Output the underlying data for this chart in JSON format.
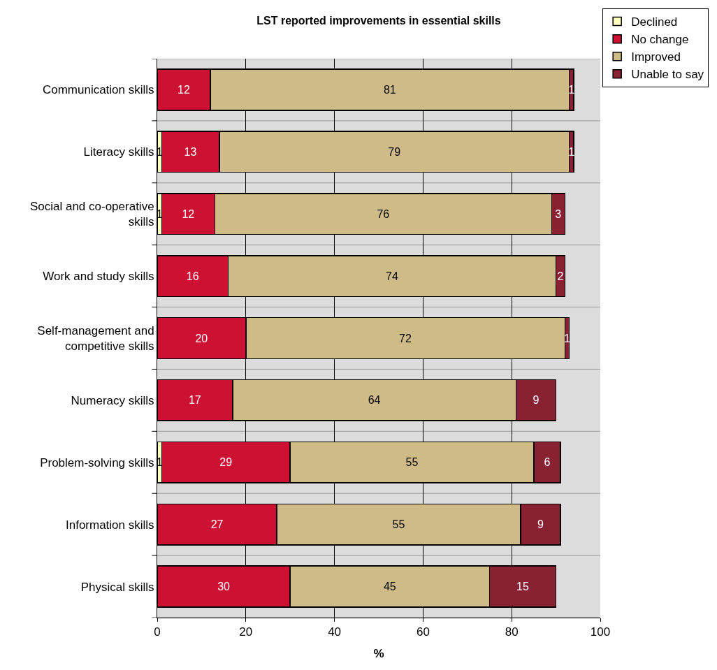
{
  "chart_data": {
    "type": "bar",
    "orientation": "horizontal",
    "stacked": true,
    "title": "LST reported improvements in essential skills",
    "xlabel": "%",
    "categories": [
      "Communication skills",
      "Literacy skills",
      "Social and co-operative skills",
      "Work and study skills",
      "Self-management and competitive skills",
      "Numeracy skills",
      "Problem-solving skills",
      "Information skills",
      "Physical skills"
    ],
    "series": [
      {
        "name": "Declined",
        "color": "#ffffc0",
        "values": [
          null,
          1,
          1,
          null,
          null,
          null,
          1,
          null,
          null
        ]
      },
      {
        "name": "No change",
        "color": "#cc1133",
        "values": [
          12,
          13,
          12,
          16,
          20,
          17,
          29,
          27,
          30
        ]
      },
      {
        "name": "Improved",
        "color": "#cfbb88",
        "values": [
          81,
          79,
          76,
          74,
          72,
          64,
          55,
          55,
          45
        ]
      },
      {
        "name": "Unable to say",
        "color": "#882233",
        "values": [
          1,
          1,
          3,
          2,
          1,
          9,
          6,
          9,
          15
        ]
      }
    ],
    "xlim": [
      0,
      100
    ],
    "xticks": [
      0,
      20,
      40,
      60,
      80,
      100
    ],
    "grid": true,
    "legend": "top right",
    "data_labels": true
  }
}
